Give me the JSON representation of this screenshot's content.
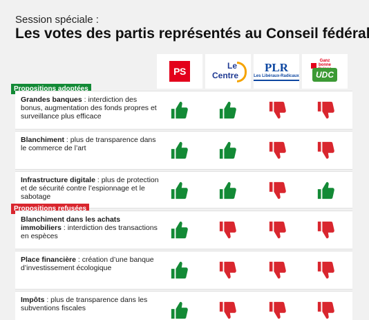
{
  "header": {
    "subtitle": "Session spéciale :",
    "title": "Les votes des partis représentés au Conseil fédéral"
  },
  "parties": [
    {
      "id": "ps",
      "logo_text": "PS",
      "color": "#e3001b"
    },
    {
      "id": "centre",
      "logo_line1": "Le",
      "logo_line2": "Centre",
      "color": "#1f3a93",
      "accent": "#f5a300"
    },
    {
      "id": "plr",
      "logo_text": "PLR",
      "logo_sub": "Les Libéraux-Radicaux",
      "color": "#0d47a1"
    },
    {
      "id": "udc",
      "logo_text": "UDC",
      "logo_top": "Ganz bonne Suisse",
      "color": "#3c9a35"
    }
  ],
  "colors": {
    "approve": "#138a36",
    "reject": "#d9262e"
  },
  "sections": [
    {
      "label": "Propositions adoptées",
      "color": "#138a36",
      "rows": [
        {
          "bold": "Grandes banques",
          "text": " : interdiction des bonus, augmentation des fonds propres et surveillance plus efficace",
          "votes": [
            "approve",
            "approve",
            "reject",
            "reject"
          ]
        },
        {
          "bold": "Blanchiment",
          "text": " : plus de transparence dans le commerce de l’art",
          "votes": [
            "approve",
            "approve",
            "reject",
            "reject"
          ]
        },
        {
          "bold": "Infrastructure digitale",
          "text": " : plus de protection et de sécurité contre l’espionnage et le sabotage",
          "votes": [
            "approve",
            "approve",
            "reject",
            "approve"
          ]
        }
      ]
    },
    {
      "label": "Propositions refusées",
      "color": "#d9262e",
      "rows": [
        {
          "bold": "Blanchiment dans les achats immobiliers",
          "text": " : interdiction des transactions en espèces",
          "votes": [
            "approve",
            "reject",
            "reject",
            "reject"
          ]
        },
        {
          "bold": "Place financière",
          "text": " : création d’une banque d’investissement écologique",
          "votes": [
            "approve",
            "reject",
            "reject",
            "reject"
          ]
        },
        {
          "bold": "Impôts",
          "text": " : plus de transparence dans les subventions fiscales",
          "votes": [
            "approve",
            "reject",
            "reject",
            "reject"
          ]
        }
      ]
    }
  ]
}
